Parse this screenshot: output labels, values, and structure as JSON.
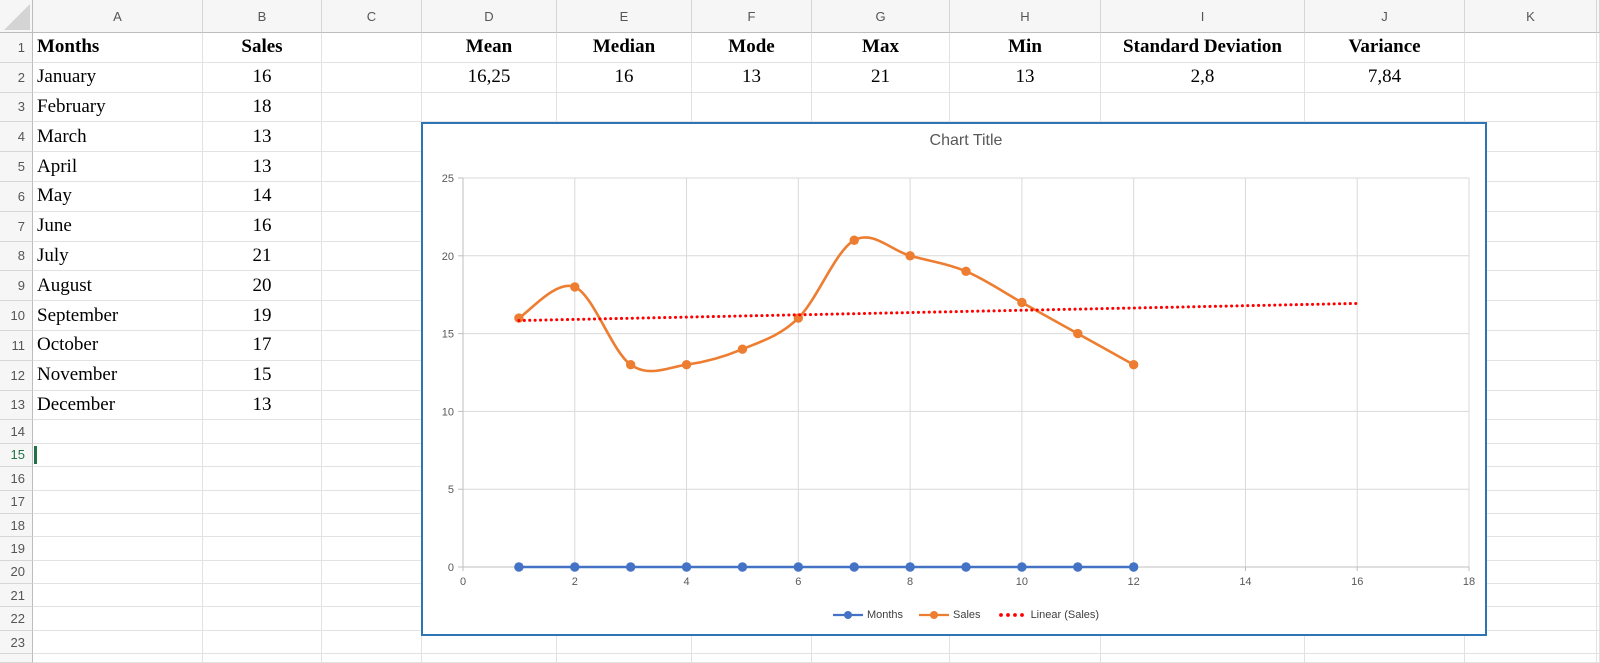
{
  "spreadsheet": {
    "column_headers": [
      "A",
      "B",
      "C",
      "D",
      "E",
      "F",
      "G",
      "H",
      "I",
      "J",
      "K"
    ],
    "visible_row_count": 23,
    "active_row": 15,
    "active_cell": "A15",
    "table": {
      "months_header": "Months",
      "sales_header": "Sales",
      "rows": [
        [
          "January",
          "16"
        ],
        [
          "February",
          "18"
        ],
        [
          "March",
          "13"
        ],
        [
          "April",
          "13"
        ],
        [
          "May",
          "14"
        ],
        [
          "June",
          "16"
        ],
        [
          "July",
          "21"
        ],
        [
          "August",
          "20"
        ],
        [
          "September",
          "19"
        ],
        [
          "October",
          "17"
        ],
        [
          "November",
          "15"
        ],
        [
          "December",
          "13"
        ]
      ]
    },
    "stats": {
      "headers": [
        "Mean",
        "Median",
        "Mode",
        "Max",
        "Min",
        "Standard Deviation",
        "Variance"
      ],
      "values": [
        "16,25",
        "16",
        "13",
        "21",
        "13",
        "2,8",
        "7,84"
      ],
      "columns": [
        "D",
        "E",
        "F",
        "G",
        "H",
        "I",
        "J"
      ]
    }
  },
  "chart_data": {
    "type": "line",
    "title": "Chart Title",
    "x": [
      1,
      2,
      3,
      4,
      5,
      6,
      7,
      8,
      9,
      10,
      11,
      12
    ],
    "series": [
      {
        "name": "Months",
        "values": [
          0,
          0,
          0,
          0,
          0,
          0,
          0,
          0,
          0,
          0,
          0,
          0
        ],
        "color": "#4472C4",
        "style": "line-marker",
        "smooth": false
      },
      {
        "name": "Sales",
        "values": [
          16,
          18,
          13,
          13,
          14,
          16,
          21,
          20,
          19,
          17,
          15,
          13
        ],
        "color": "#ED7D31",
        "style": "line-marker",
        "smooth": true
      },
      {
        "name": "Linear (Sales)",
        "color": "#FF0000",
        "style": "dotted",
        "trend": {
          "x1": 1,
          "y1": 15.84,
          "x2": 16,
          "y2": 16.94
        }
      }
    ],
    "xlim": [
      0,
      18
    ],
    "ylim": [
      0,
      25
    ],
    "x_ticks": [
      0,
      2,
      4,
      6,
      8,
      10,
      12,
      14,
      16,
      18
    ],
    "y_ticks": [
      0,
      5,
      10,
      15,
      20,
      25
    ],
    "grid": true,
    "legend_position": "bottom"
  },
  "colors": {
    "accent_blue": "#4472C4",
    "accent_orange": "#ED7D31",
    "trend_red": "#FF0000",
    "chart_border_blue": "#2E75B6",
    "active_green": "#217346",
    "gridline": "#D9D9D9",
    "axis_line": "#BFBFBF",
    "chart_text": "#595959"
  }
}
